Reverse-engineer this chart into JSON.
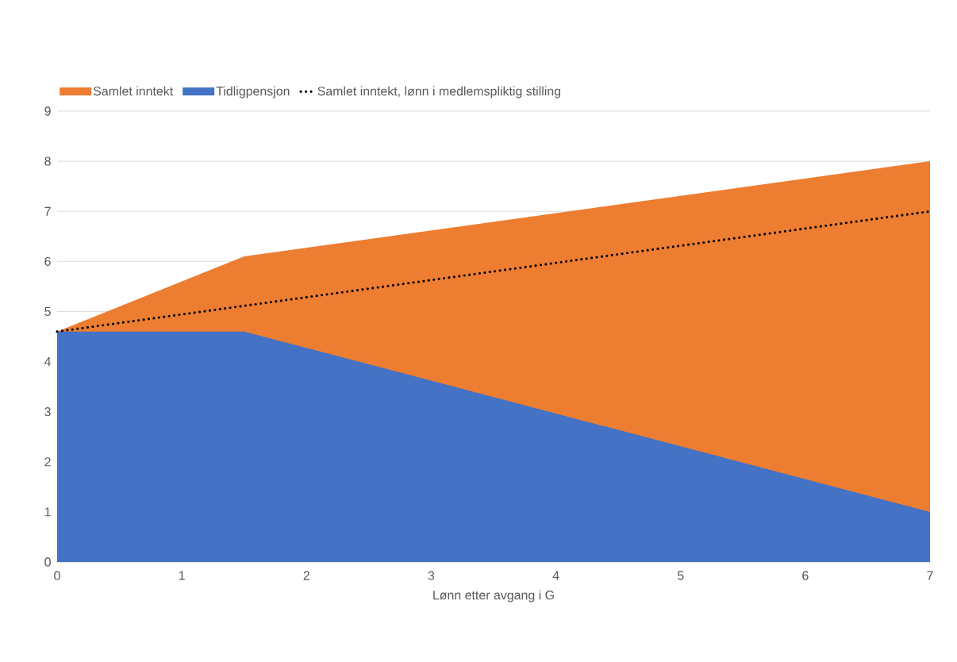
{
  "chart_data": {
    "type": "area",
    "xlabel": "Lønn etter avgang i G",
    "series": [
      {
        "name": "Samlet inntekt",
        "color": "#ed7d31",
        "x": [
          0,
          1.5,
          7
        ],
        "values": [
          4.6,
          6.1,
          8.0
        ]
      },
      {
        "name": "Tidligpensjon",
        "color": "#4472c4",
        "x": [
          0,
          1.5,
          7
        ],
        "values": [
          4.6,
          4.6,
          1.0
        ]
      },
      {
        "name": "Samlet inntekt, lønn i medlemspliktig stilling",
        "color": "#000000",
        "type": "line",
        "line_style": "dotted",
        "x": [
          0,
          7
        ],
        "values": [
          4.6,
          7.0
        ]
      }
    ],
    "xlim": [
      0,
      7
    ],
    "ylim": [
      0,
      9
    ],
    "xticks": [
      0,
      1,
      2,
      3,
      4,
      5,
      6,
      7
    ],
    "yticks": [
      0,
      1,
      2,
      3,
      4,
      5,
      6,
      7,
      8,
      9
    ],
    "grid": "y",
    "legend": "top left"
  }
}
